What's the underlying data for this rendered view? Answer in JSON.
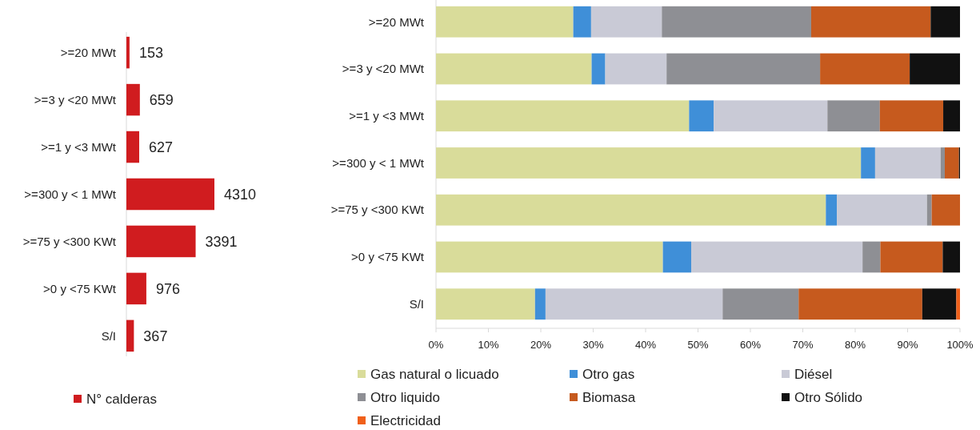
{
  "chart_data": [
    {
      "type": "bar",
      "orientation": "horizontal",
      "categories": [
        ">=20 MWt",
        ">=3 y <20 MWt",
        ">=1 y <3 MWt",
        ">=300 y < 1 MWt",
        ">=75 y <300 KWt",
        ">0 y <75 KWt",
        "S/I"
      ],
      "series": [
        {
          "name": "N° calderas",
          "color": "#d01c1f",
          "values": [
            153,
            659,
            627,
            4310,
            3391,
            976,
            367
          ]
        }
      ],
      "data_labels": true,
      "relative": false,
      "legend": "bottom"
    },
    {
      "type": "bar",
      "orientation": "horizontal",
      "stacked": true,
      "categories": [
        ">=20 MWt",
        ">=3 y <20 MWt",
        ">=1 y <3 MWt",
        ">=300 y < 1 MWt",
        ">=75 y <300 KWt",
        ">0 y <75 KWt",
        "S/I"
      ],
      "xlim": [
        0,
        100
      ],
      "xticks": [
        {
          "value": 0,
          "label": "0%"
        },
        {
          "value": 10,
          "label": "10%"
        },
        {
          "value": 20,
          "label": "20%"
        },
        {
          "value": 30,
          "label": "30%"
        },
        {
          "value": 40,
          "label": "40%"
        },
        {
          "value": 50,
          "label": "50%"
        },
        {
          "value": 60,
          "label": "60%"
        },
        {
          "value": 70,
          "label": "70%"
        },
        {
          "value": 80,
          "label": "80%"
        },
        {
          "value": 90,
          "label": "90%"
        },
        {
          "value": 100,
          "label": "100%"
        }
      ],
      "legend": "bottom",
      "series": [
        {
          "name": "Gas natural o licuado",
          "color": "#d9dc9a",
          "values": [
            26.2,
            29.7,
            48.3,
            81.1,
            74.4,
            43.3,
            18.9
          ]
        },
        {
          "name": "Otro gas",
          "color": "#3f8fd8",
          "values": [
            3.4,
            2.6,
            4.7,
            2.7,
            2.1,
            5.4,
            2.0
          ]
        },
        {
          "name": "Diésel",
          "color": "#c9cad6",
          "values": [
            13.5,
            11.7,
            21.7,
            12.5,
            17.2,
            32.7,
            33.8
          ]
        },
        {
          "name": "Otro liquido",
          "color": "#8e8f94",
          "values": [
            28.5,
            29.3,
            10.0,
            0.8,
            0.9,
            3.4,
            14.5
          ]
        },
        {
          "name": "Biomasa",
          "color": "#c65a1e",
          "values": [
            22.8,
            17.1,
            12.1,
            2.7,
            5.4,
            11.9,
            23.6
          ]
        },
        {
          "name": "Otro Sólido",
          "color": "#111111",
          "values": [
            5.6,
            9.6,
            3.2,
            0.2,
            0,
            3.3,
            6.5
          ]
        },
        {
          "name": "Electricidad",
          "color": "#f0601a",
          "values": [
            0,
            0,
            0,
            0,
            0,
            0,
            0.7
          ]
        }
      ]
    }
  ]
}
